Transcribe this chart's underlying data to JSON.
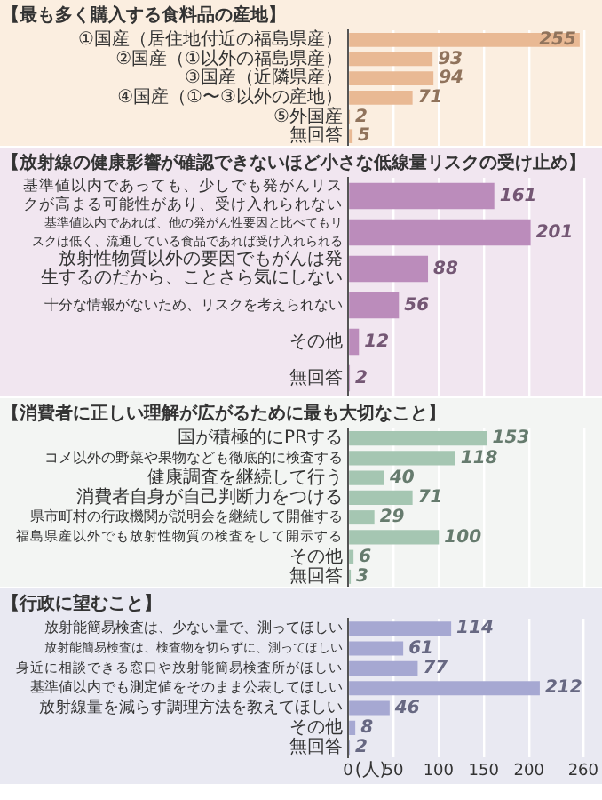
{
  "chart_data": [
    {
      "type": "bar",
      "orientation": "horizontal",
      "title": "【最も多く購入する食料品の産地】",
      "categories": [
        "①国産（居住地付近の福島県産）",
        "②国産（①以外の福島県産）",
        "③国産（近隣県産）",
        "④国産（①〜③以外の産地）",
        "⑤外国産",
        "無回答"
      ],
      "values": [
        255,
        93,
        94,
        71,
        2,
        5
      ],
      "color": "#e9b994",
      "data_labels": true,
      "xlim": [
        0,
        260
      ],
      "xticks": [
        0,
        50,
        100,
        150,
        200,
        260
      ],
      "grid": "x",
      "tick_labels": "y"
    },
    {
      "type": "bar",
      "orientation": "horizontal",
      "title": "【放射線の健康影響が確認できないほど小さな低線量リスクの受け止め】",
      "categories": [
        "基準値以内であっても、少しでも発がんリスクが高まる可能性があり、受け入れられない",
        "基準値以内であれば、他の発がん性要因と比べてもリスクは低く、流通している食品であれば受け入れられる",
        "放射性物質以外の要因でもがんは発生するのだから、ことさら気にしない",
        "十分な情報がないため、リスクを考えられない",
        "その他",
        "無回答"
      ],
      "values": [
        161,
        201,
        88,
        56,
        12,
        2
      ],
      "color": "#bb8cbb",
      "data_labels": true,
      "xlim": [
        0,
        260
      ],
      "xticks": [
        0,
        50,
        100,
        150,
        200,
        260
      ],
      "grid": "x",
      "tick_labels": "y"
    },
    {
      "type": "bar",
      "orientation": "horizontal",
      "title": "【消費者に正しい理解が広がるために最も大切なこと】",
      "categories": [
        "国が積極的にPRする",
        "コメ以外の野菜や果物なども徹底的に検査する",
        "健康調査を継続して行う",
        "消費者自身が自己判断力をつける",
        "県市町村の行政機関が説明会を継続して開催する",
        "福島県産以外でも放射性物質の検査をして開示する",
        "その他",
        "無回答"
      ],
      "values": [
        153,
        118,
        40,
        71,
        29,
        100,
        6,
        3
      ],
      "color": "#a5c6b2",
      "data_labels": true,
      "xlim": [
        0,
        260
      ],
      "xticks": [
        0,
        50,
        100,
        150,
        200,
        260
      ],
      "grid": "x",
      "tick_labels": "y"
    },
    {
      "type": "bar",
      "orientation": "horizontal",
      "title": "【行政に望むこと】",
      "categories": [
        "放射能簡易検査は、少ない量で、測ってほしい",
        "放射能簡易検査は、検査物を切らずに、測ってほしい",
        "身近に相談できる窓口や放射能簡易検査所がほしい",
        "基準値以内でも測定値をそのまま公表してほしい",
        "放射線量を減らす調理方法を教えてほしい",
        "その他",
        "無回答"
      ],
      "values": [
        114,
        61,
        77,
        212,
        46,
        8,
        2
      ],
      "color": "#a6a8d2",
      "data_labels": true,
      "xlim": [
        0,
        260
      ],
      "xticks": [
        0,
        50,
        100,
        150,
        200,
        260
      ],
      "xlabel": "(人)",
      "grid": "x"
    }
  ]
}
